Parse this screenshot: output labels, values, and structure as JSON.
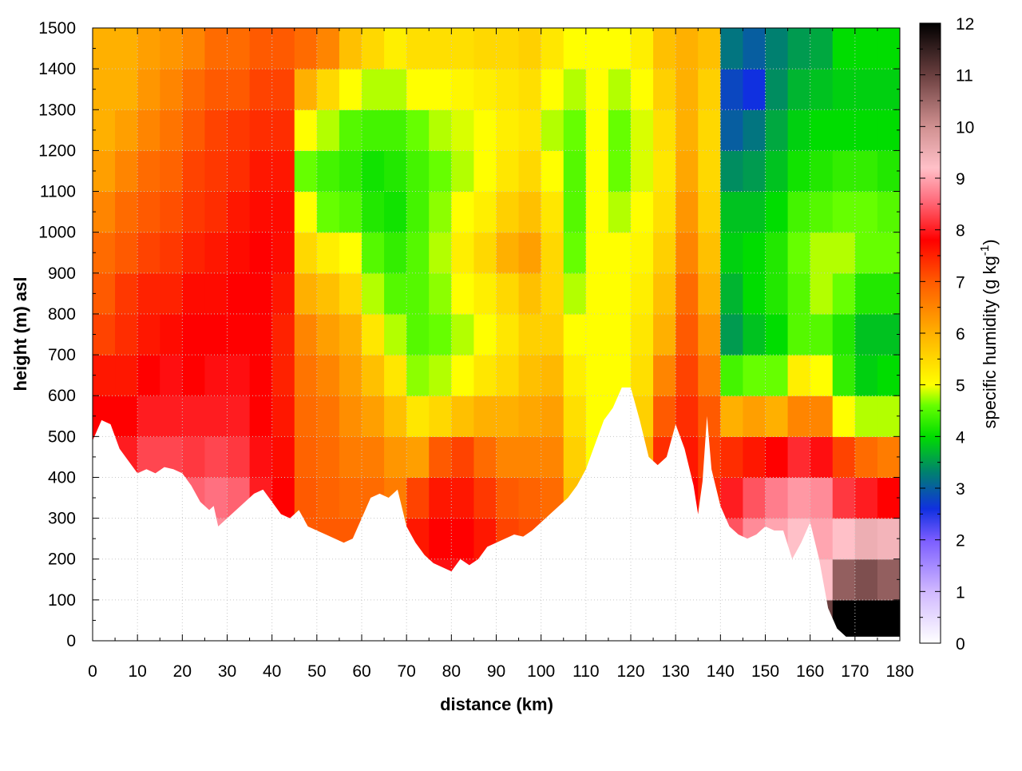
{
  "chart_data": {
    "type": "heatmap",
    "xlabel": "distance (km)",
    "ylabel": "height (m) asl",
    "xlim": [
      0,
      180
    ],
    "ylim": [
      0,
      1500
    ],
    "xticks": [
      "0",
      "10",
      "20",
      "30",
      "40",
      "50",
      "60",
      "70",
      "80",
      "90",
      "100",
      "110",
      "120",
      "130",
      "140",
      "150",
      "160",
      "170",
      "180"
    ],
    "yticks": [
      "0",
      "100",
      "200",
      "300",
      "400",
      "500",
      "600",
      "700",
      "800",
      "900",
      "1000",
      "1100",
      "1200",
      "1300",
      "1400",
      "1500"
    ],
    "grid": true,
    "colorbar": {
      "label_main": "specific humidity (g kg",
      "label_sup": "-1",
      "label_end": ")",
      "range": [
        0,
        12
      ],
      "ticks": [
        "0",
        "1",
        "2",
        "3",
        "4",
        "5",
        "6",
        "7",
        "8",
        "9",
        "10",
        "11",
        "12"
      ],
      "palette": [
        {
          "v": 0,
          "c": "#ffffff"
        },
        {
          "v": 1,
          "c": "#d0b8ff"
        },
        {
          "v": 2,
          "c": "#7a5cff"
        },
        {
          "v": 2.6,
          "c": "#1030e0"
        },
        {
          "v": 3.3,
          "c": "#008070"
        },
        {
          "v": 4,
          "c": "#00dd00"
        },
        {
          "v": 4.6,
          "c": "#66ff00"
        },
        {
          "v": 5,
          "c": "#ffff00"
        },
        {
          "v": 6,
          "c": "#ffb000"
        },
        {
          "v": 7,
          "c": "#ff5a00"
        },
        {
          "v": 7.8,
          "c": "#ff0000"
        },
        {
          "v": 8.6,
          "c": "#ff7080"
        },
        {
          "v": 9.2,
          "c": "#ffc0c8"
        },
        {
          "v": 10,
          "c": "#d09090"
        },
        {
          "v": 11,
          "c": "#6a3f3f"
        },
        {
          "v": 12,
          "c": "#000000"
        }
      ]
    },
    "terrain": [
      [
        0,
        490
      ],
      [
        2,
        540
      ],
      [
        4,
        530
      ],
      [
        6,
        470
      ],
      [
        8,
        440
      ],
      [
        10,
        410
      ],
      [
        12,
        420
      ],
      [
        14,
        410
      ],
      [
        16,
        425
      ],
      [
        18,
        420
      ],
      [
        20,
        410
      ],
      [
        22,
        380
      ],
      [
        24,
        340
      ],
      [
        26,
        320
      ],
      [
        27,
        330
      ],
      [
        28,
        280
      ],
      [
        30,
        300
      ],
      [
        32,
        320
      ],
      [
        34,
        340
      ],
      [
        36,
        360
      ],
      [
        38,
        370
      ],
      [
        40,
        340
      ],
      [
        42,
        310
      ],
      [
        44,
        300
      ],
      [
        46,
        320
      ],
      [
        48,
        280
      ],
      [
        50,
        270
      ],
      [
        52,
        260
      ],
      [
        54,
        250
      ],
      [
        56,
        240
      ],
      [
        58,
        250
      ],
      [
        60,
        300
      ],
      [
        62,
        350
      ],
      [
        64,
        360
      ],
      [
        66,
        350
      ],
      [
        68,
        370
      ],
      [
        70,
        280
      ],
      [
        72,
        240
      ],
      [
        74,
        210
      ],
      [
        76,
        190
      ],
      [
        78,
        180
      ],
      [
        80,
        170
      ],
      [
        82,
        200
      ],
      [
        84,
        185
      ],
      [
        86,
        200
      ],
      [
        88,
        230
      ],
      [
        90,
        240
      ],
      [
        92,
        250
      ],
      [
        94,
        260
      ],
      [
        96,
        255
      ],
      [
        98,
        270
      ],
      [
        100,
        290
      ],
      [
        102,
        310
      ],
      [
        104,
        330
      ],
      [
        106,
        350
      ],
      [
        108,
        380
      ],
      [
        110,
        420
      ],
      [
        112,
        480
      ],
      [
        114,
        540
      ],
      [
        116,
        570
      ],
      [
        118,
        620
      ],
      [
        120,
        620
      ],
      [
        122,
        540
      ],
      [
        124,
        450
      ],
      [
        126,
        430
      ],
      [
        128,
        450
      ],
      [
        130,
        530
      ],
      [
        132,
        470
      ],
      [
        134,
        380
      ],
      [
        135,
        310
      ],
      [
        136,
        390
      ],
      [
        137,
        550
      ],
      [
        138,
        420
      ],
      [
        140,
        330
      ],
      [
        142,
        280
      ],
      [
        144,
        260
      ],
      [
        146,
        250
      ],
      [
        148,
        260
      ],
      [
        150,
        280
      ],
      [
        152,
        270
      ],
      [
        154,
        270
      ],
      [
        156,
        200
      ],
      [
        158,
        240
      ],
      [
        160,
        290
      ],
      [
        162,
        200
      ],
      [
        164,
        80
      ],
      [
        166,
        30
      ],
      [
        168,
        10
      ],
      [
        170,
        10
      ],
      [
        175,
        10
      ],
      [
        180,
        10
      ]
    ],
    "cells": [
      {
        "x": [
          0,
          5
        ],
        "v": [
          7.8,
          8.4,
          8.6,
          8.4,
          8.0,
          7.8,
          7.6,
          7.2,
          7.0,
          6.8,
          6.5,
          6.2,
          6.0,
          6.0,
          6.0
        ]
      },
      {
        "x": [
          5,
          10
        ],
        "v": [
          7.8,
          8.3,
          8.5,
          8.3,
          8.0,
          7.8,
          7.6,
          7.4,
          7.3,
          7.0,
          6.8,
          6.5,
          6.2,
          6.0,
          6.0
        ]
      },
      {
        "x": [
          10,
          15
        ],
        "v": [
          8.2,
          8.6,
          8.9,
          8.7,
          8.3,
          8.0,
          7.8,
          7.6,
          7.5,
          7.2,
          7.0,
          6.8,
          6.5,
          6.3,
          6.2
        ]
      },
      {
        "x": [
          15,
          20
        ],
        "v": [
          8.3,
          8.8,
          9.0,
          8.7,
          8.3,
          8.0,
          7.9,
          7.7,
          7.5,
          7.3,
          7.1,
          6.9,
          6.7,
          6.5,
          6.3
        ]
      },
      {
        "x": [
          20,
          25
        ],
        "v": [
          8.0,
          8.5,
          8.7,
          8.5,
          8.2,
          8.0,
          7.8,
          7.8,
          7.7,
          7.5,
          7.3,
          7.2,
          7.0,
          6.8,
          6.5
        ]
      },
      {
        "x": [
          25,
          30
        ],
        "v": [
          8.0,
          8.4,
          8.8,
          8.6,
          8.3,
          8.0,
          7.9,
          7.8,
          7.7,
          7.6,
          7.4,
          7.3,
          7.2,
          7.0,
          6.8
        ]
      },
      {
        "x": [
          30,
          35
        ],
        "v": [
          8.0,
          8.6,
          8.8,
          8.5,
          8.2,
          8.0,
          7.9,
          7.8,
          7.8,
          7.7,
          7.6,
          7.4,
          7.3,
          7.0,
          6.8
        ]
      },
      {
        "x": [
          35,
          40
        ],
        "v": [
          7.8,
          8.0,
          8.2,
          8.0,
          7.9,
          7.8,
          7.8,
          7.8,
          7.8,
          7.8,
          7.7,
          7.6,
          7.4,
          7.2,
          7.0
        ]
      },
      {
        "x": [
          40,
          45
        ],
        "v": [
          7.5,
          7.8,
          7.9,
          7.8,
          7.7,
          7.6,
          7.5,
          7.5,
          7.6,
          7.7,
          7.7,
          7.6,
          7.4,
          7.2,
          7.0
        ]
      },
      {
        "x": [
          45,
          50
        ],
        "v": [
          6.8,
          7.0,
          7.0,
          7.0,
          6.9,
          6.8,
          6.7,
          6.5,
          6.0,
          5.5,
          5.0,
          4.6,
          5.0,
          6.0,
          6.8
        ]
      },
      {
        "x": [
          50,
          55
        ],
        "v": [
          6.8,
          7.0,
          7.0,
          6.9,
          6.8,
          6.7,
          6.5,
          6.2,
          5.8,
          5.2,
          4.6,
          4.4,
          4.8,
          5.5,
          6.5
        ]
      },
      {
        "x": [
          55,
          60
        ],
        "v": [
          6.8,
          6.9,
          7.0,
          6.8,
          6.6,
          6.4,
          6.2,
          6.0,
          5.5,
          5.0,
          4.5,
          4.3,
          4.5,
          5.0,
          5.8
        ]
      },
      {
        "x": [
          60,
          65
        ],
        "v": [
          6.5,
          6.8,
          6.9,
          6.8,
          6.6,
          6.2,
          5.8,
          5.3,
          4.8,
          4.5,
          4.2,
          4.1,
          4.4,
          4.8,
          5.5
        ]
      },
      {
        "x": [
          65,
          70
        ],
        "v": [
          6.5,
          6.8,
          6.8,
          6.6,
          6.3,
          5.8,
          5.3,
          4.8,
          4.5,
          4.3,
          4.1,
          4.2,
          4.4,
          4.8,
          5.2
        ]
      },
      {
        "x": [
          70,
          75
        ],
        "v": [
          7.0,
          7.4,
          7.6,
          7.2,
          6.2,
          5.3,
          4.7,
          4.5,
          4.5,
          4.5,
          4.4,
          4.4,
          4.6,
          5.0,
          5.4
        ]
      },
      {
        "x": [
          75,
          80
        ],
        "v": [
          7.8,
          7.9,
          7.8,
          7.6,
          7.0,
          5.5,
          4.8,
          4.6,
          4.7,
          4.8,
          4.7,
          4.6,
          4.8,
          5.0,
          5.4
        ]
      },
      {
        "x": [
          80,
          85
        ],
        "v": [
          7.8,
          7.9,
          7.8,
          7.6,
          7.2,
          5.8,
          5.0,
          4.8,
          5.0,
          5.2,
          5.0,
          4.8,
          4.9,
          5.1,
          5.4
        ]
      },
      {
        "x": [
          85,
          90
        ],
        "v": [
          7.6,
          7.7,
          7.6,
          7.3,
          6.8,
          6.0,
          5.3,
          5.0,
          5.2,
          5.5,
          5.2,
          5.0,
          5.0,
          5.2,
          5.5
        ]
      },
      {
        "x": [
          90,
          95
        ],
        "v": [
          6.8,
          7.2,
          7.2,
          7.0,
          6.5,
          6.0,
          5.5,
          5.3,
          5.5,
          6.0,
          5.6,
          5.3,
          5.2,
          5.3,
          5.5
        ]
      },
      {
        "x": [
          95,
          100
        ],
        "v": [
          6.8,
          7.1,
          7.1,
          6.9,
          6.5,
          6.1,
          5.8,
          5.6,
          5.8,
          6.2,
          5.8,
          5.5,
          5.3,
          5.4,
          5.6
        ]
      },
      {
        "x": [
          100,
          105
        ],
        "v": [
          6.6,
          6.9,
          7.0,
          6.8,
          6.5,
          6.2,
          5.9,
          5.6,
          5.5,
          5.5,
          5.3,
          5.0,
          4.8,
          5.0,
          5.3
        ]
      },
      {
        "x": [
          105,
          110
        ],
        "v": [
          5.8,
          6.0,
          6.0,
          5.8,
          5.6,
          5.4,
          5.2,
          5.0,
          4.8,
          4.6,
          4.5,
          4.5,
          4.6,
          4.8,
          5.0
        ]
      },
      {
        "x": [
          110,
          115
        ],
        "v": [
          5.2,
          5.2,
          5.2,
          5.2,
          5.0,
          5.0,
          5.0,
          5.0,
          5.0,
          5.0,
          5.0,
          5.0,
          5.0,
          5.0,
          5.0
        ]
      },
      {
        "x": [
          115,
          120
        ],
        "v": [
          5.0,
          5.0,
          5.0,
          5.0,
          5.0,
          5.0,
          5.0,
          5.0,
          5.0,
          5.0,
          4.8,
          4.6,
          4.6,
          4.8,
          5.0
        ]
      },
      {
        "x": [
          120,
          125
        ],
        "v": [
          7.0,
          7.0,
          7.0,
          6.5,
          6.0,
          5.6,
          5.4,
          5.3,
          5.2,
          5.1,
          5.0,
          4.9,
          4.9,
          5.0,
          5.2
        ]
      },
      {
        "x": [
          125,
          130
        ],
        "v": [
          7.2,
          7.4,
          7.6,
          7.6,
          7.4,
          7.0,
          6.5,
          6.0,
          5.8,
          5.6,
          5.4,
          5.3,
          5.4,
          5.6,
          5.8
        ]
      },
      {
        "x": [
          130,
          135
        ],
        "v": [
          7.5,
          7.8,
          7.8,
          7.8,
          7.6,
          7.4,
          7.2,
          7.0,
          6.8,
          6.5,
          6.3,
          6.1,
          6.0,
          6.0,
          6.0
        ]
      },
      {
        "x": [
          135,
          140
        ],
        "v": [
          7.0,
          7.2,
          7.4,
          7.4,
          7.2,
          7.0,
          6.6,
          6.3,
          6.0,
          5.8,
          5.6,
          5.5,
          5.5,
          5.6,
          5.8
        ]
      },
      {
        "x": [
          140,
          145
        ],
        "v": [
          8.0,
          8.2,
          8.4,
          8.0,
          7.4,
          6.0,
          4.4,
          3.5,
          3.7,
          3.9,
          3.8,
          3.4,
          3.0,
          2.8,
          3.2
        ]
      },
      {
        "x": [
          145,
          150
        ],
        "v": [
          8.2,
          8.6,
          8.8,
          8.4,
          7.6,
          6.2,
          4.6,
          3.8,
          4.0,
          4.0,
          3.8,
          3.5,
          3.2,
          2.6,
          3.0
        ]
      },
      {
        "x": [
          150,
          155
        ],
        "v": [
          8.3,
          8.8,
          9.0,
          8.7,
          7.8,
          6.0,
          4.6,
          4.0,
          4.2,
          4.2,
          4.0,
          3.8,
          3.6,
          3.4,
          3.3
        ]
      },
      {
        "x": [
          155,
          160
        ],
        "v": [
          8.6,
          9.0,
          9.2,
          8.9,
          8.1,
          6.5,
          5.2,
          4.5,
          4.5,
          4.6,
          4.4,
          4.1,
          3.9,
          3.7,
          3.5
        ]
      },
      {
        "x": [
          160,
          165
        ],
        "v": [
          11.0,
          9.2,
          9.0,
          8.8,
          7.9,
          6.5,
          5.0,
          4.5,
          4.8,
          4.8,
          4.5,
          4.2,
          4.0,
          3.8,
          3.6
        ]
      },
      {
        "x": [
          165,
          170
        ],
        "v": [
          12.0,
          10.6,
          9.2,
          8.2,
          7.2,
          5.0,
          4.3,
          4.2,
          4.6,
          4.8,
          4.6,
          4.3,
          4.0,
          3.9,
          4.0
        ]
      },
      {
        "x": [
          170,
          175
        ],
        "v": [
          12.0,
          10.8,
          9.5,
          8.0,
          6.8,
          4.8,
          3.9,
          3.8,
          4.2,
          4.6,
          4.6,
          4.3,
          4.0,
          3.9,
          4.0
        ]
      },
      {
        "x": [
          175,
          180
        ],
        "v": [
          12.0,
          10.6,
          9.4,
          7.8,
          6.6,
          4.8,
          4.0,
          3.8,
          4.2,
          4.6,
          4.5,
          4.2,
          4.0,
          3.9,
          4.0
        ]
      }
    ]
  }
}
